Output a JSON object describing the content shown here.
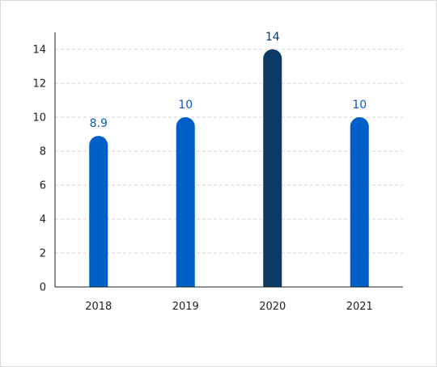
{
  "chart_data": {
    "type": "bar",
    "title": "",
    "xlabel": "",
    "ylabel": "",
    "categories": [
      "2018",
      "2019",
      "2020",
      "2021"
    ],
    "values": [
      8.9,
      10,
      14,
      10
    ],
    "data_labels": [
      "8.9",
      "10",
      "14",
      "10"
    ],
    "ylim": [
      0,
      15
    ],
    "yticks": [
      0,
      2,
      4,
      6,
      8,
      10,
      12,
      14
    ],
    "ytick_labels": [
      "0",
      "2",
      "4",
      "6",
      "8",
      "10",
      "12",
      "14"
    ],
    "grid": true,
    "colors": {
      "bar": "#005ec8",
      "highlight_bar": "#0b3a64",
      "label": "#0a5bbf",
      "highlight_label": "#0b3a64"
    },
    "highlight_index": 2
  }
}
